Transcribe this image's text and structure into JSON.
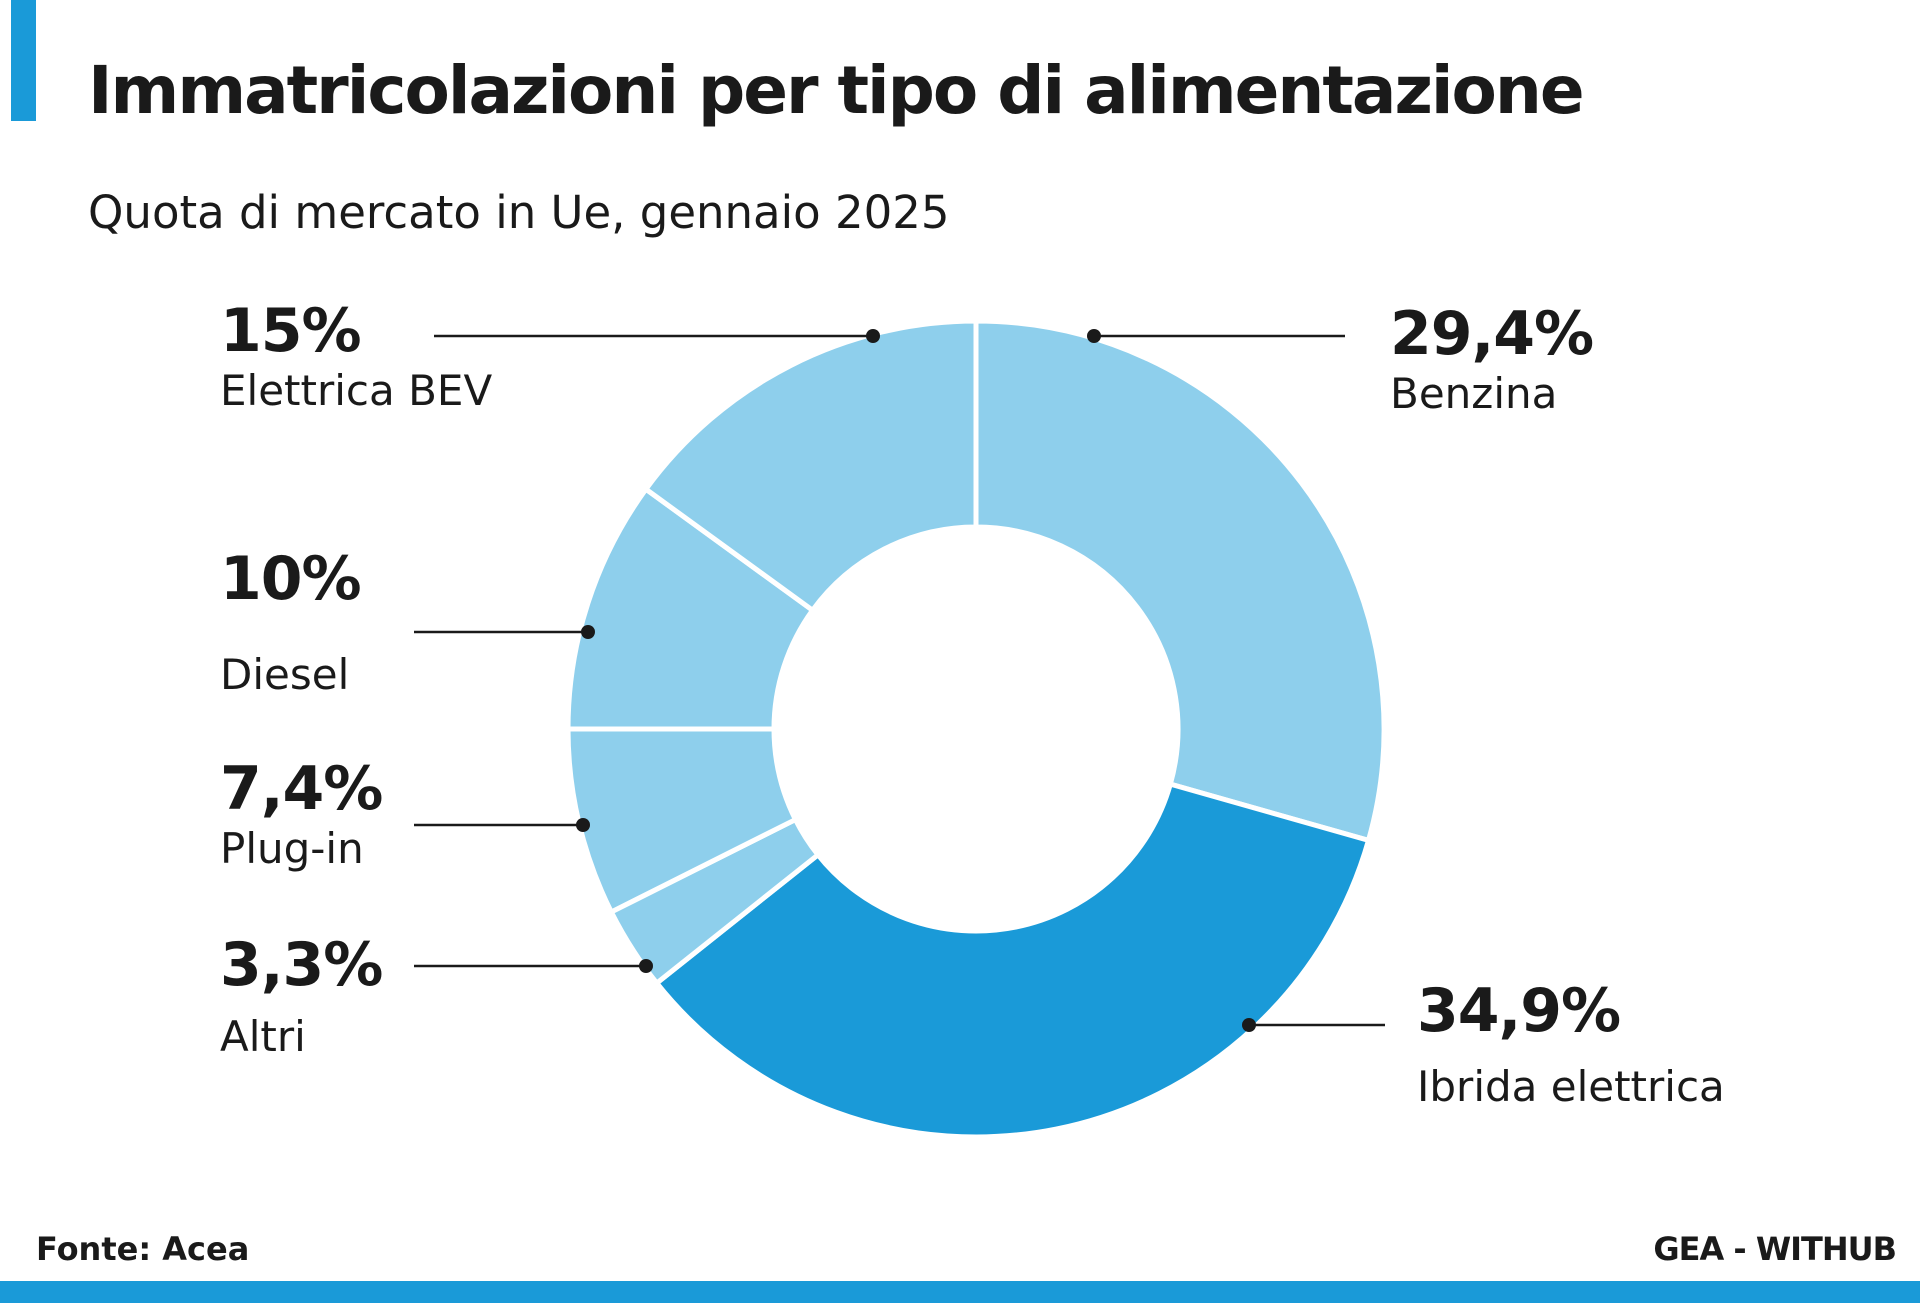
{
  "header": {
    "title": "Immatricolazioni per tipo di alimentazione",
    "subtitle": "Quota di mercato in Ue, gennaio 2025"
  },
  "footer": {
    "source": "Fonte: Acea",
    "credit": "GEA - WITHUB"
  },
  "colors": {
    "accent": "#1a9ad8",
    "light_slice": "#8ecfec",
    "dark_slice": "#1a9ad8",
    "text": "#1a1a1a"
  },
  "chart_data": {
    "type": "pie",
    "style": "donut",
    "title": "Immatricolazioni per tipo di alimentazione",
    "subtitle": "Quota di mercato in Ue, gennaio 2025",
    "slices": [
      {
        "label": "Benzina",
        "value": 29.4,
        "display": "29,4%"
      },
      {
        "label": "Ibrida elettrica",
        "value": 34.9,
        "display": "34,9%"
      },
      {
        "label": "Altri",
        "value": 3.3,
        "display": "3,3%"
      },
      {
        "label": "Plug-in",
        "value": 7.4,
        "display": "7,4%"
      },
      {
        "label": "Diesel",
        "value": 10,
        "display": "10%"
      },
      {
        "label": "Elettrica BEV",
        "value": 15,
        "display": "15%"
      }
    ],
    "highlighted": "Ibrida elettrica",
    "legend": "none"
  }
}
